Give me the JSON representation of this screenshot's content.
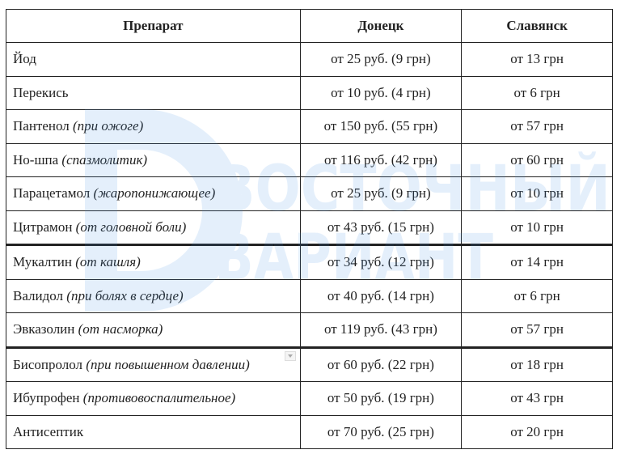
{
  "table": {
    "headers": [
      "Препарат",
      "Донецк",
      "Славянск"
    ],
    "rows": [
      {
        "name": "Йод",
        "note": "",
        "donetsk": "от 25 руб. (9 грн)",
        "slavyansk": "от 13 грн"
      },
      {
        "name": "Перекись",
        "note": "",
        "donetsk": "от 10 руб. (4 грн)",
        "slavyansk": "от 6 грн"
      },
      {
        "name": "Пантенол",
        "note": "(при ожоге)",
        "donetsk": "от 150 руб. (55 грн)",
        "slavyansk": "от 57 грн"
      },
      {
        "name": "Но-шпа",
        "note": "(спазмолитик)",
        "donetsk": "от 116 руб. (42 грн)",
        "slavyansk": "от 60 грн"
      },
      {
        "name": "Парацетамол",
        "note": "(жаропонижающее)",
        "donetsk": "от 25 руб. (9 грн)",
        "slavyansk": "от 10 грн"
      },
      {
        "name": "Цитрамон",
        "note": "(от головной боли)",
        "donetsk": "от 43 руб. (15 грн)",
        "slavyansk": "от 10 грн"
      },
      {
        "name": "Мукалтин",
        "note": "(от кашля)",
        "donetsk": "от 34 руб. (12 грн)",
        "slavyansk": "от 14 грн"
      },
      {
        "name": "Валидол",
        "note": "(при болях в сердце)",
        "donetsk": "от 40 руб. (14 грн)",
        "slavyansk": "от 6 грн"
      },
      {
        "name": "Эвказолин",
        "note": "(от насморка)",
        "donetsk": "от 119 руб. (43 грн)",
        "slavyansk": "от 57 грн"
      },
      {
        "name": "Бисопролол",
        "note": "(при повышенном давлении)",
        "donetsk": "от 60 руб. (22 грн)",
        "slavyansk": "от 18 грн"
      },
      {
        "name": "Ибупрофен",
        "note": "(противовоспалительное)",
        "donetsk": "от 50 руб. (19 грн)",
        "slavyansk": "от 43 грн"
      },
      {
        "name": "Антисептик",
        "note": "",
        "donetsk": "от 70 руб. (25 грн)",
        "slavyansk": "от 20 грн"
      }
    ]
  },
  "watermark": {
    "line1": "ВОСТОЧНЫЙ",
    "line2": "ВАРИАНТ",
    "color": "#3a8ee6"
  }
}
